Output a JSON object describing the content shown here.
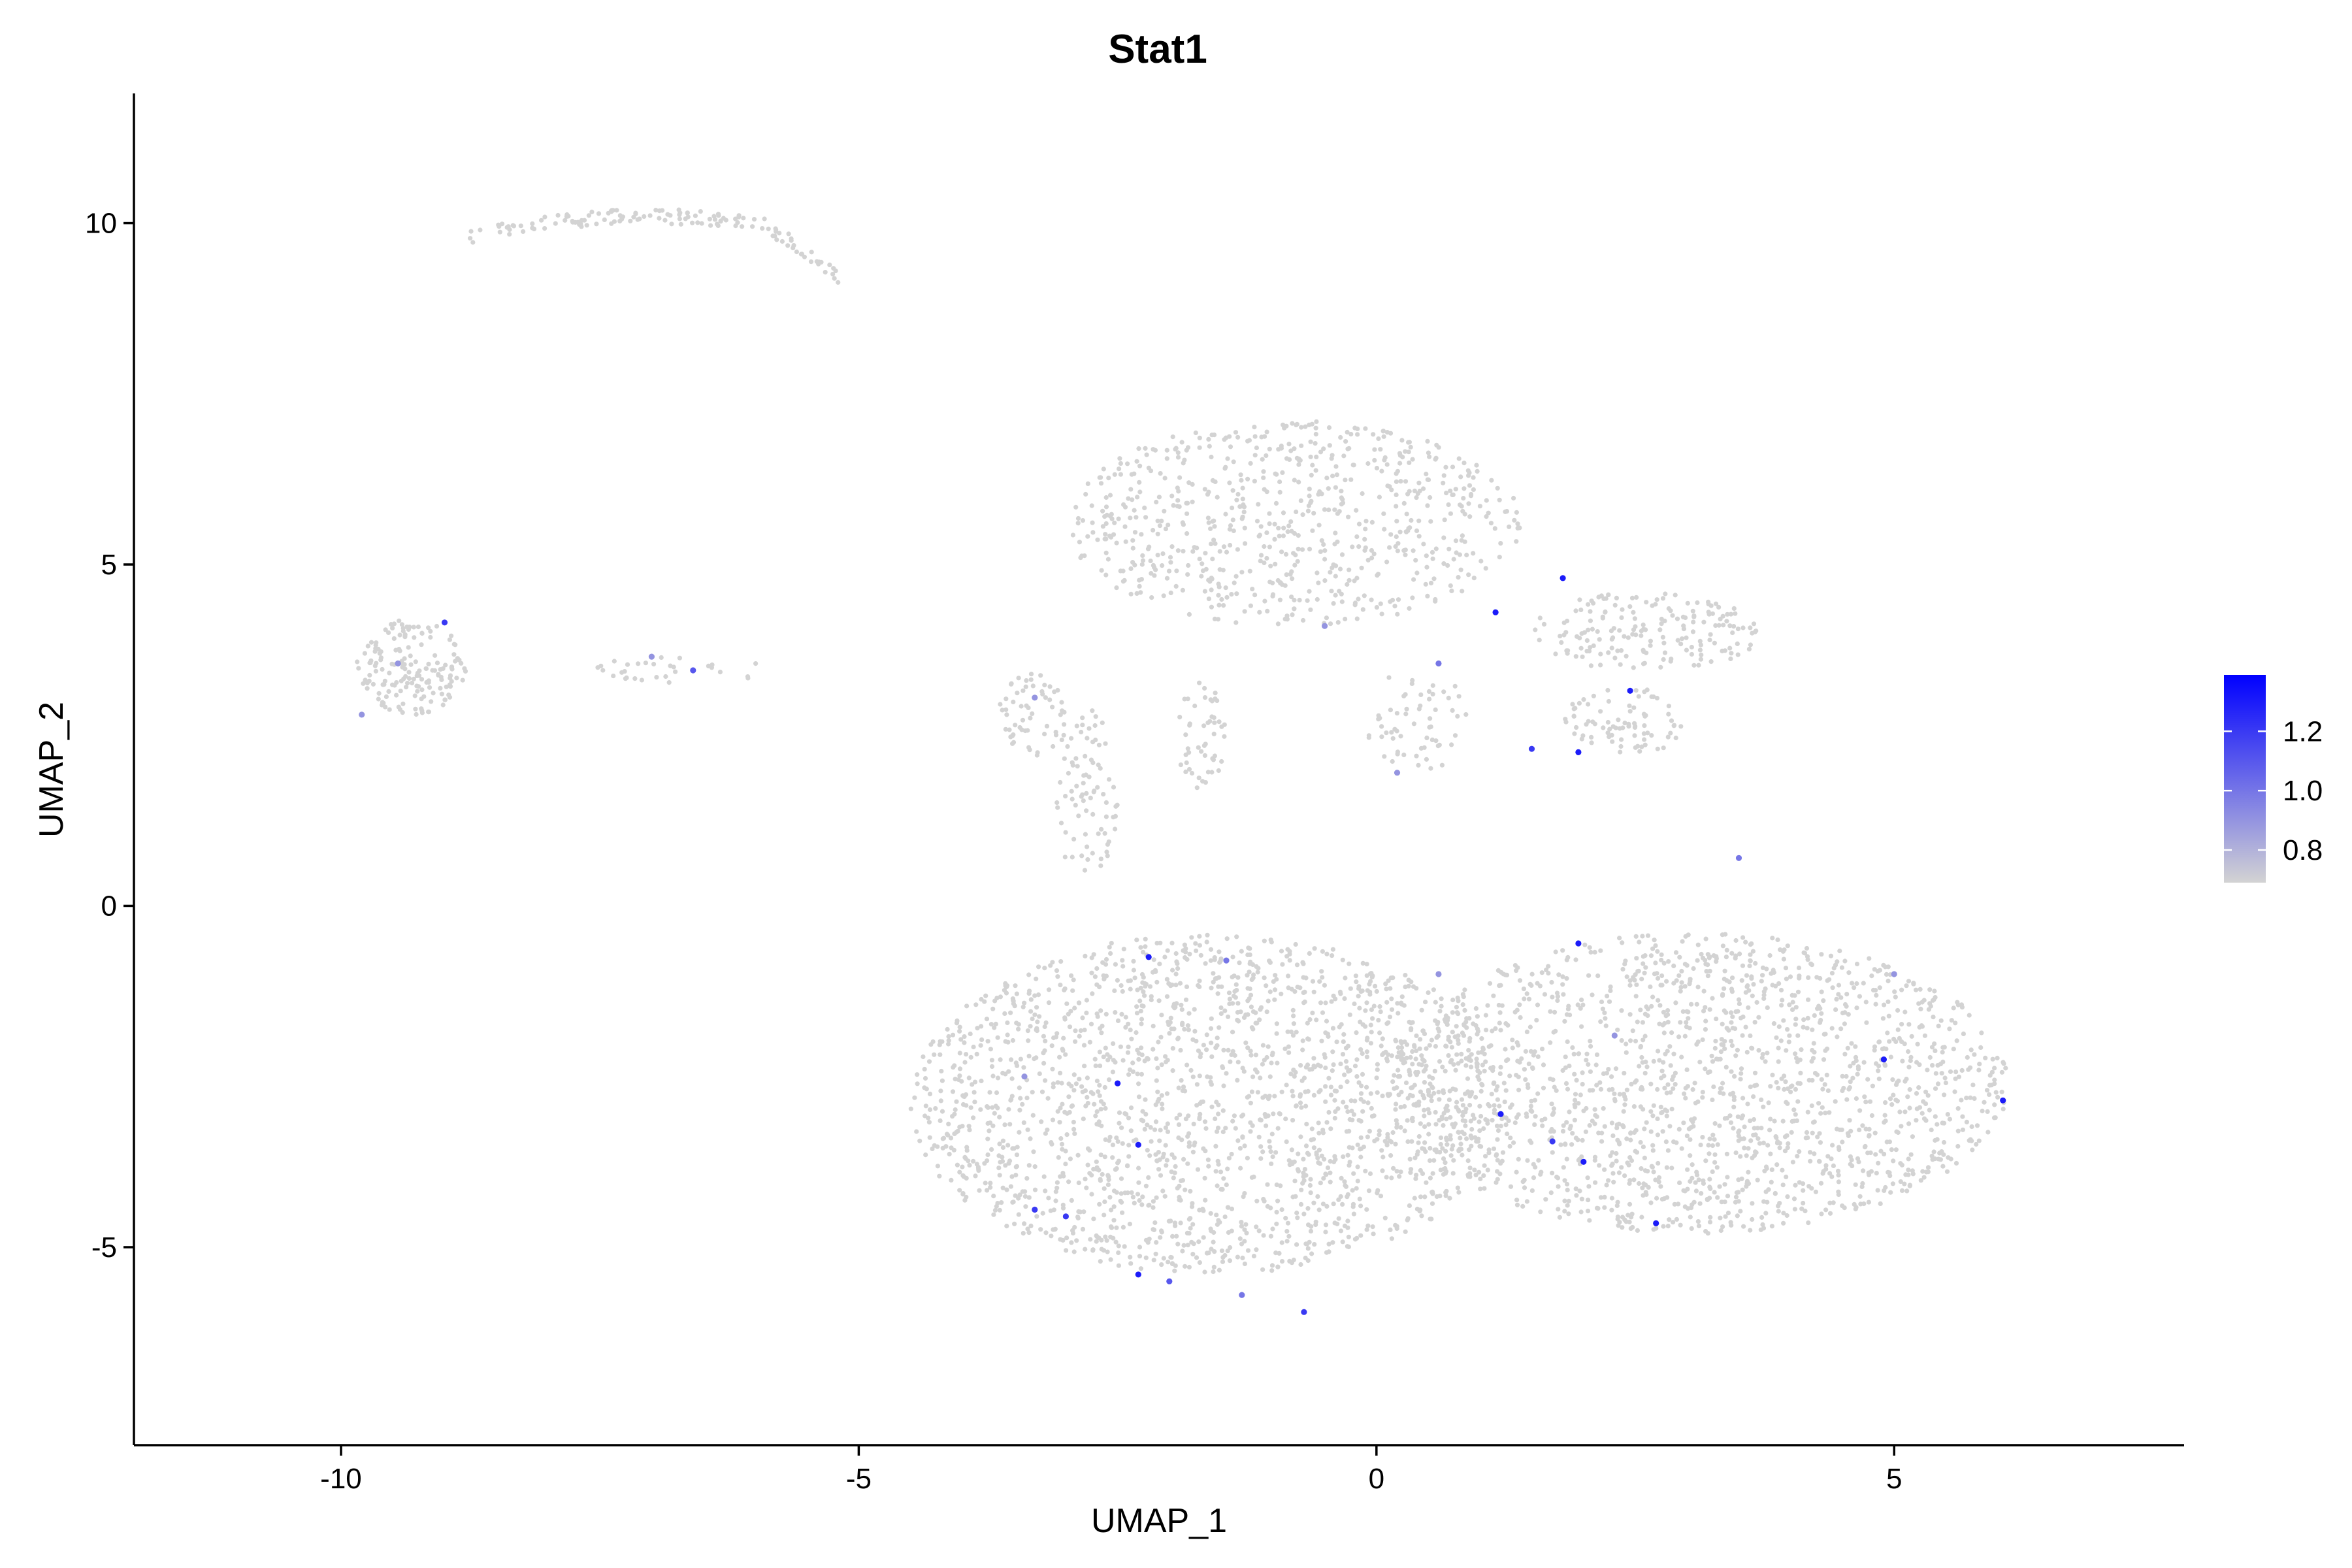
{
  "chart_data": {
    "type": "scatter",
    "title": "Stat1",
    "xlabel": "UMAP_1",
    "ylabel": "UMAP_2",
    "xlim": [
      -12,
      7.8
    ],
    "ylim": [
      -7.9,
      11.9
    ],
    "x_ticks": [
      -10,
      -5,
      0,
      5
    ],
    "x_tick_labels": [
      "-10",
      "-5",
      "0",
      "5"
    ],
    "y_ticks": [
      -5,
      0,
      5,
      10
    ],
    "y_tick_labels": [
      "-5",
      "0",
      "5",
      "10"
    ],
    "grid": false,
    "legend": {
      "placement": "right",
      "type": "colorbar",
      "min": 0.69,
      "max": 1.39,
      "ticks": [
        0.8,
        1.0,
        1.2
      ],
      "tick_labels": [
        "0.8",
        "1.0",
        "1.2"
      ],
      "low_color": "#D3D3D3",
      "high_color": "#0000FF"
    },
    "base_color": "#D3D3D3",
    "regions": [
      {
        "cx": -7.0,
        "cy": 9.95,
        "rx": 1.8,
        "ry": 0.25,
        "n": 140,
        "shape": "arc"
      },
      {
        "cx": -9.3,
        "cy": 3.5,
        "rx": 0.55,
        "ry": 0.7,
        "n": 170,
        "shape": "blob"
      },
      {
        "cx": -6.7,
        "cy": 3.45,
        "rx": 0.9,
        "ry": 0.2,
        "n": 30,
        "shape": "strip"
      },
      {
        "cx": -3.3,
        "cy": 2.8,
        "rx": 0.35,
        "ry": 0.6,
        "n": 60,
        "shape": "blob"
      },
      {
        "cx": -2.8,
        "cy": 1.6,
        "rx": 0.3,
        "ry": 1.3,
        "n": 80,
        "shape": "blob"
      },
      {
        "cx": -0.8,
        "cy": 5.6,
        "rx": 2.2,
        "ry": 1.5,
        "n": 700,
        "shape": "blob"
      },
      {
        "cx": 2.6,
        "cy": 4.0,
        "rx": 1.1,
        "ry": 0.6,
        "n": 180,
        "shape": "blob"
      },
      {
        "cx": 2.4,
        "cy": 2.7,
        "rx": 0.6,
        "ry": 0.5,
        "n": 80,
        "shape": "blob"
      },
      {
        "cx": -1.7,
        "cy": 2.5,
        "rx": 0.25,
        "ry": 0.8,
        "n": 50,
        "shape": "blob"
      },
      {
        "cx": 0.4,
        "cy": 2.7,
        "rx": 0.5,
        "ry": 0.8,
        "n": 60,
        "shape": "blob"
      },
      {
        "cx": -1.6,
        "cy": -2.9,
        "rx": 2.9,
        "ry": 2.5,
        "n": 1900,
        "shape": "blob"
      },
      {
        "cx": 3.1,
        "cy": -2.6,
        "rx": 3.0,
        "ry": 2.2,
        "n": 1700,
        "shape": "blob"
      }
    ],
    "highlighted_points": [
      {
        "x": -9.0,
        "y": 4.15,
        "value": 1.2
      },
      {
        "x": -9.45,
        "y": 3.55,
        "value": 0.9
      },
      {
        "x": -9.8,
        "y": 2.8,
        "value": 0.9
      },
      {
        "x": -6.6,
        "y": 3.45,
        "value": 1.1
      },
      {
        "x": -7.0,
        "y": 3.65,
        "value": 0.9
      },
      {
        "x": -3.3,
        "y": 3.05,
        "value": 0.9
      },
      {
        "x": -2.2,
        "y": -0.75,
        "value": 1.3
      },
      {
        "x": -1.45,
        "y": -0.8,
        "value": 1.0
      },
      {
        "x": -0.5,
        "y": 4.1,
        "value": 0.9
      },
      {
        "x": 1.15,
        "y": 4.3,
        "value": 1.3
      },
      {
        "x": 1.8,
        "y": 4.8,
        "value": 1.3
      },
      {
        "x": 0.6,
        "y": 3.55,
        "value": 1.0
      },
      {
        "x": 2.45,
        "y": 3.15,
        "value": 1.3
      },
      {
        "x": 1.5,
        "y": 2.3,
        "value": 1.2
      },
      {
        "x": 1.95,
        "y": 2.25,
        "value": 1.3
      },
      {
        "x": 0.2,
        "y": 1.95,
        "value": 0.9
      },
      {
        "x": 1.95,
        "y": -0.55,
        "value": 1.3
      },
      {
        "x": 1.2,
        "y": -3.05,
        "value": 1.3
      },
      {
        "x": 1.7,
        "y": -3.45,
        "value": 1.2
      },
      {
        "x": 2.0,
        "y": -3.75,
        "value": 1.3
      },
      {
        "x": 2.7,
        "y": -4.65,
        "value": 1.3
      },
      {
        "x": -3.0,
        "y": -4.55,
        "value": 1.2
      },
      {
        "x": -3.3,
        "y": -4.45,
        "value": 1.2
      },
      {
        "x": -2.5,
        "y": -2.6,
        "value": 1.3
      },
      {
        "x": -2.3,
        "y": -3.5,
        "value": 1.3
      },
      {
        "x": -2.3,
        "y": -5.4,
        "value": 1.3
      },
      {
        "x": -0.7,
        "y": -5.95,
        "value": 1.2
      },
      {
        "x": -1.3,
        "y": -5.7,
        "value": 1.0
      },
      {
        "x": 4.9,
        "y": -2.25,
        "value": 1.3
      },
      {
        "x": 6.05,
        "y": -2.85,
        "value": 1.3
      },
      {
        "x": 5.0,
        "y": -1.0,
        "value": 0.9
      },
      {
        "x": 0.6,
        "y": -1.0,
        "value": 0.9
      },
      {
        "x": -3.4,
        "y": -2.5,
        "value": 0.9
      },
      {
        "x": -2.0,
        "y": -5.5,
        "value": 1.1
      },
      {
        "x": 3.5,
        "y": 0.7,
        "value": 1.0
      },
      {
        "x": 2.3,
        "y": -1.9,
        "value": 0.9
      }
    ]
  }
}
